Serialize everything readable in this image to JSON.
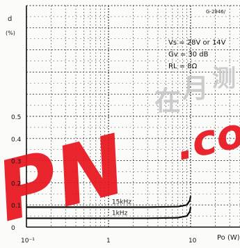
{
  "figure_id": "G-2946/",
  "conditions": [
    "Vs = 28V or 14V",
    "Gv = 30 dB",
    "RL = 8Ω"
  ],
  "watermark": {
    "letters": "PN",
    "suffix": ".co"
  },
  "chart_data": {
    "type": "line",
    "ylabel": "d",
    "ylabel_unit": "(%)",
    "xlabel": "Po (W)",
    "xscale": "log",
    "xlim": [
      0.1,
      40
    ],
    "ylim": [
      0,
      1.0
    ],
    "x_ticks": [
      {
        "value": 0.1,
        "label": "10⁻¹"
      },
      {
        "value": 1,
        "label": "1"
      },
      {
        "value": 10,
        "label": "10"
      }
    ],
    "y_ticks": [
      0,
      0.1,
      0.2,
      0.3,
      0.4,
      0.5
    ],
    "grid": true,
    "series": [
      {
        "name": "15kHz",
        "x": [
          0.1,
          0.3,
          1,
          3,
          7,
          9,
          9.8,
          10
        ],
        "y": [
          0.09,
          0.09,
          0.09,
          0.09,
          0.092,
          0.1,
          0.12,
          0.14
        ]
      },
      {
        "name": "1kHz",
        "x": [
          0.1,
          0.3,
          1,
          3,
          7,
          9,
          9.8,
          10
        ],
        "y": [
          0.04,
          0.04,
          0.04,
          0.04,
          0.042,
          0.05,
          0.07,
          0.09
        ]
      }
    ]
  }
}
